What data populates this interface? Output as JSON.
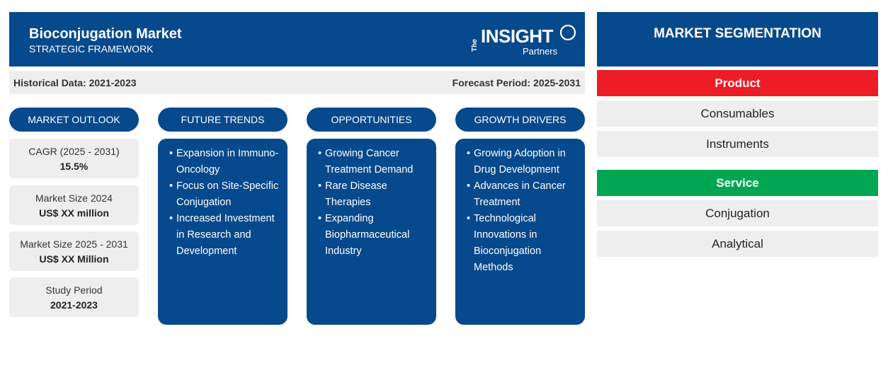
{
  "header": {
    "title": "Bioconjugation Market",
    "subtitle": "STRATEGIC FRAMEWORK",
    "logo": {
      "the": "The",
      "insight": "INSIGHT",
      "partners": "Partners"
    }
  },
  "periods": {
    "historical": "Historical Data: 2021-2023",
    "forecast": "Forecast Period: 2025-2031"
  },
  "columns": {
    "outlook": "MARKET OUTLOOK",
    "trends": "FUTURE TRENDS",
    "opportunities": "OPPORTUNITIES",
    "drivers": "GROWTH DRIVERS"
  },
  "outlook": [
    {
      "label": "CAGR (2025 - 2031)",
      "value": "15.5%"
    },
    {
      "label": "Market Size 2024",
      "value": "US$ XX million"
    },
    {
      "label": "Market Size 2025 - 2031",
      "value": "US$ XX Million"
    },
    {
      "label": "Study Period",
      "value": "2021-2023"
    }
  ],
  "trends": [
    "Expansion in Immuno-Oncology",
    "Focus on Site-Specific Conjugation",
    "Increased Investment in Research and Development"
  ],
  "opportunities": [
    "Growing Cancer Treatment Demand",
    "Rare Disease Therapies",
    "Expanding Biopharmaceutical Industry"
  ],
  "drivers": [
    "Growing Adoption in Drug Development",
    "Advances in Cancer Treatment",
    "Technological Innovations in Bioconjugation Methods"
  ],
  "segmentation": {
    "title": "MARKET SEGMENTATION",
    "groups": [
      {
        "name": "Product",
        "color": "#ee1c25",
        "items": [
          "Consumables",
          "Instruments"
        ]
      },
      {
        "name": "Service",
        "color": "#00a651",
        "items": [
          "Conjugation",
          "Analytical"
        ]
      }
    ]
  },
  "colors": {
    "primary": "#06498c",
    "panel": "#eeeeee"
  }
}
